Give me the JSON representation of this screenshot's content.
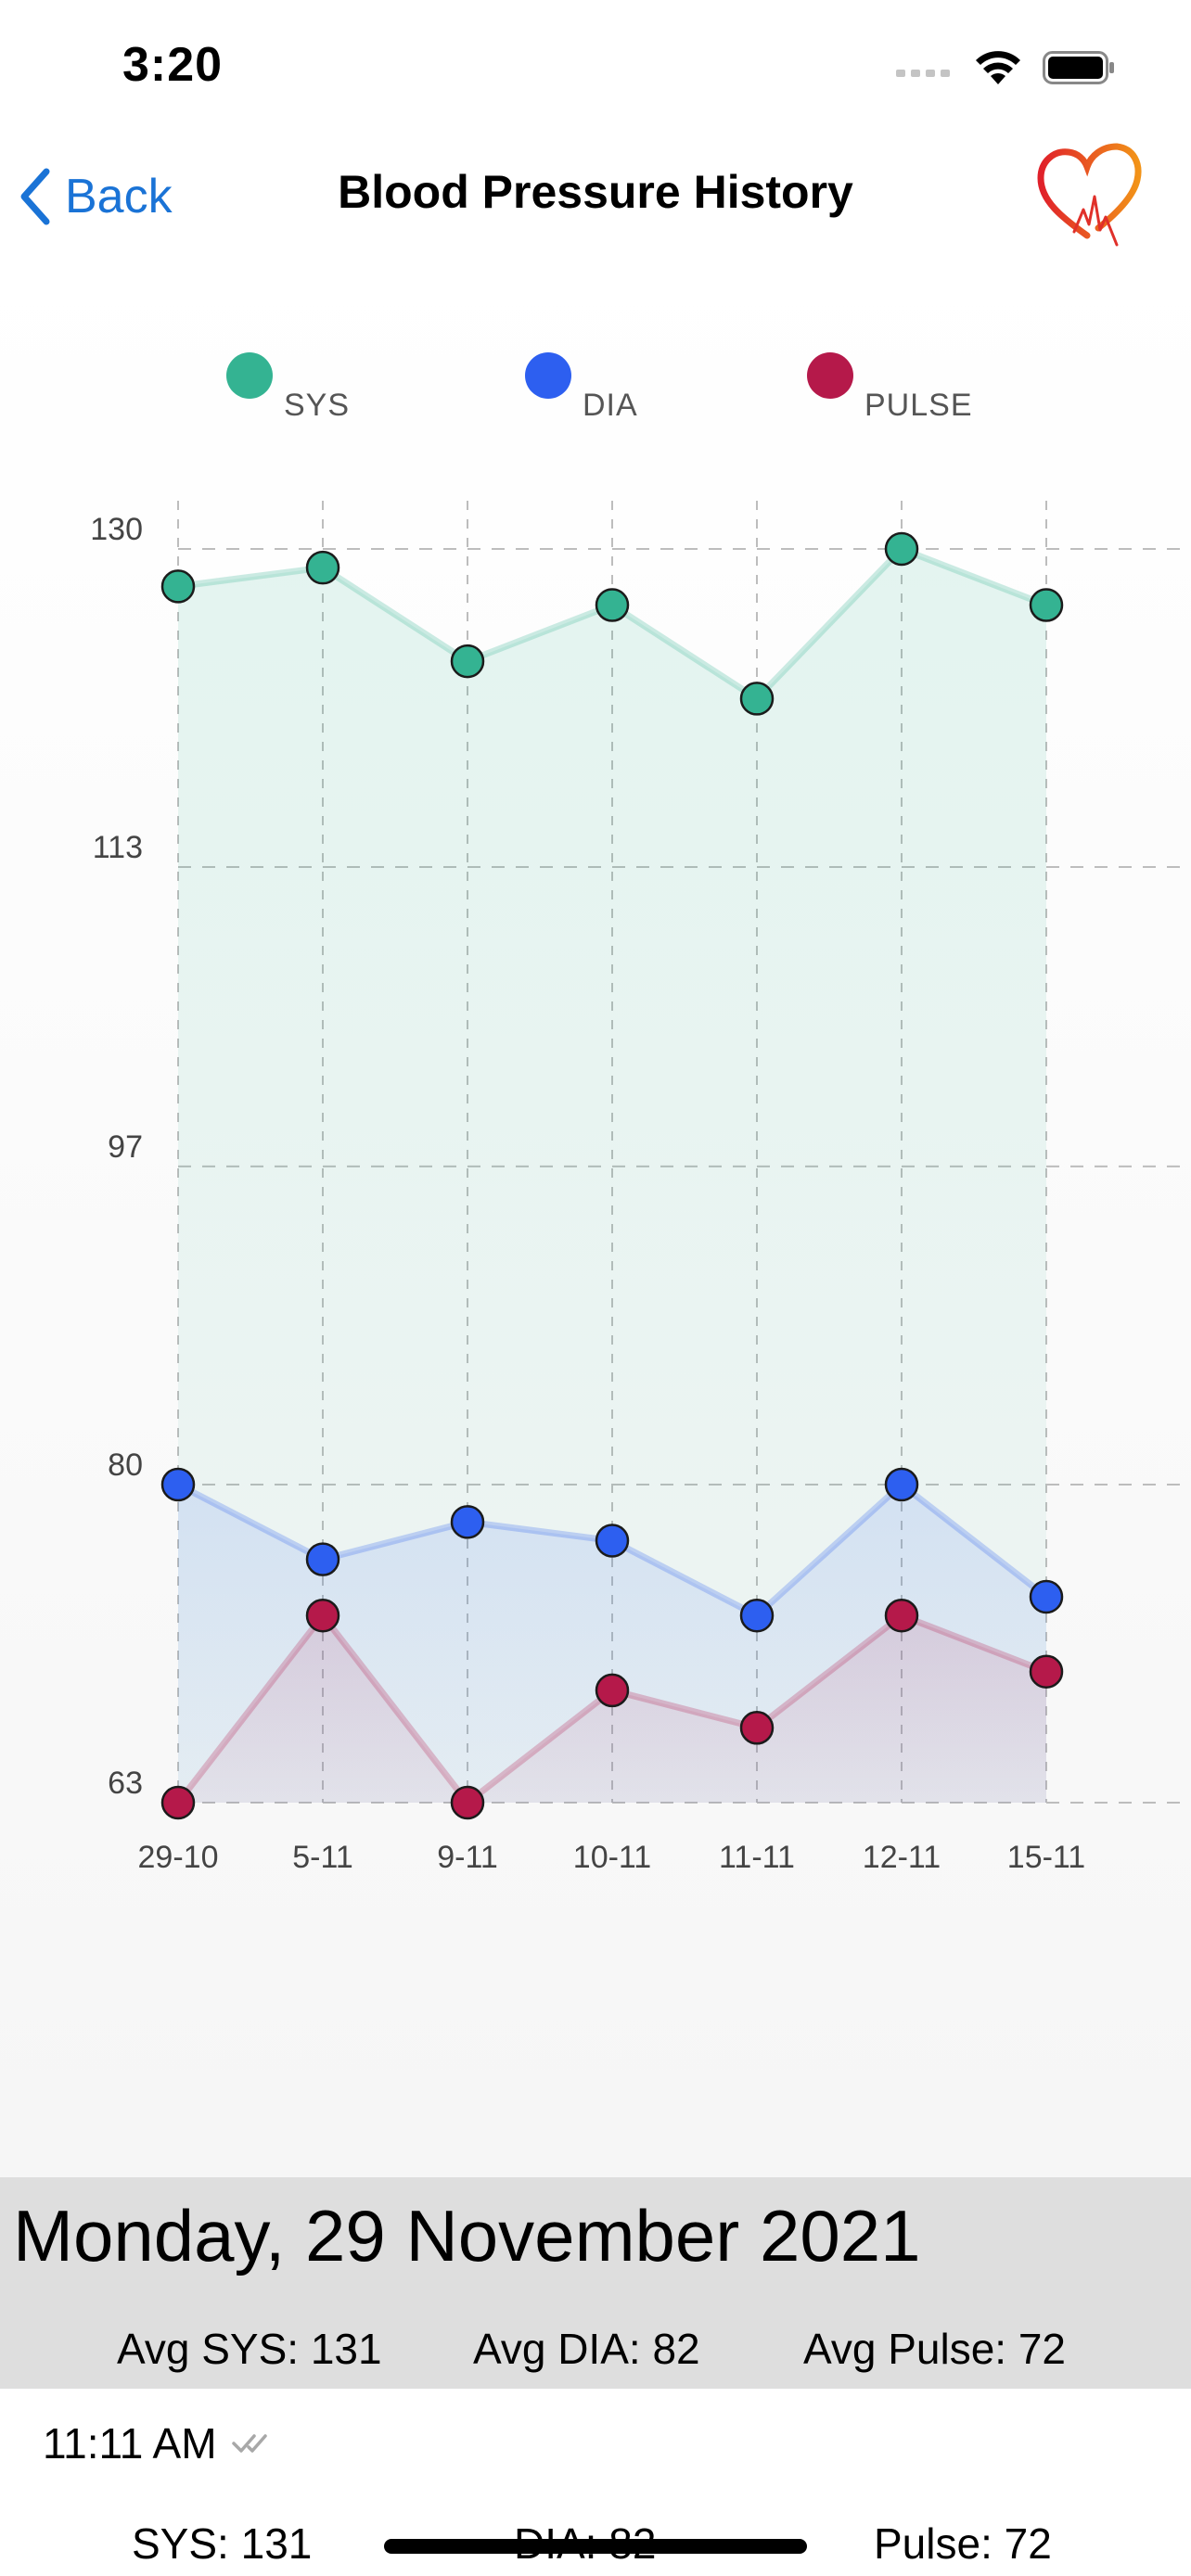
{
  "status_bar": {
    "time": "3:20"
  },
  "nav": {
    "back_label": "Back",
    "title": "Blood Pressure History"
  },
  "legend": [
    {
      "label": "SYS",
      "color": "#34b392"
    },
    {
      "label": "DIA",
      "color": "#2d5ff0"
    },
    {
      "label": "PULSE",
      "color": "#b5194a"
    }
  ],
  "chart_data": {
    "type": "line",
    "categories": [
      "29-10",
      "5-11",
      "9-11",
      "10-11",
      "11-11",
      "12-11",
      "15-11"
    ],
    "y_ticks": [
      130,
      113,
      97,
      80,
      63
    ],
    "ylim": [
      63,
      130
    ],
    "grid": true,
    "legend_position": "top",
    "series": [
      {
        "name": "SYS",
        "color": "#34b392",
        "values": [
          128,
          129,
          124,
          127,
          122,
          130,
          127
        ]
      },
      {
        "name": "DIA",
        "color": "#2d5ff0",
        "values": [
          80,
          76,
          78,
          77,
          73,
          80,
          74
        ]
      },
      {
        "name": "PULSE",
        "color": "#b5194a",
        "values": [
          63,
          73,
          63,
          69,
          67,
          73,
          70
        ]
      }
    ]
  },
  "summary": {
    "date": "Monday, 29 November 2021",
    "avg_sys": "Avg SYS: 131",
    "avg_dia": "Avg DIA: 82",
    "avg_pulse": "Avg Pulse: 72"
  },
  "entry": {
    "time": "11:11 AM",
    "sys": "SYS: 131",
    "dia": "DIA: 82",
    "pulse": "Pulse: 72"
  }
}
